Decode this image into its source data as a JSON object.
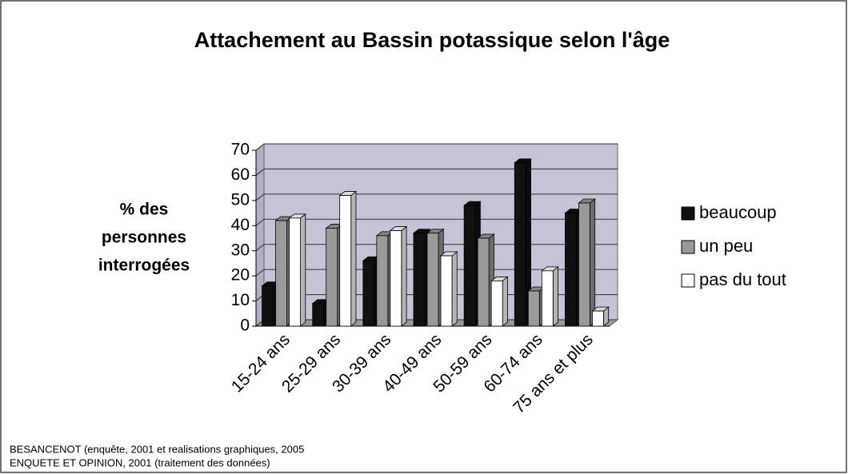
{
  "chart_data": {
    "type": "bar3d",
    "title": "Attachement au Bassin potassique selon l'âge",
    "ylabel": [
      "% des",
      "personnes",
      "interrogées"
    ],
    "categories": [
      "15-24 ans",
      "25-29 ans",
      "30-39 ans",
      "40-49 ans",
      "50-59 ans",
      "60-74 ans",
      "75 ans et plus"
    ],
    "series": [
      {
        "name": "beaucoup",
        "color": "#111111",
        "values": [
          16,
          9,
          26,
          37,
          48,
          65,
          45
        ]
      },
      {
        "name": "un peu",
        "color": "#9a9a9a",
        "values": [
          42,
          39,
          36,
          37,
          35,
          14,
          49
        ]
      },
      {
        "name": "pas du tout",
        "color": "#ffffff",
        "values": [
          43,
          52,
          38,
          28,
          18,
          22,
          6
        ]
      }
    ],
    "ylim": [
      0,
      70
    ],
    "yticks": [
      0,
      10,
      20,
      30,
      40,
      50,
      60,
      70
    ],
    "grid": true,
    "legend": "right",
    "source": [
      "BESANCENOT (enquête, 2001 et realisations graphiques, 2005",
      "ENQUETE ET OPINION, 2001 (traitement des données)"
    ]
  }
}
